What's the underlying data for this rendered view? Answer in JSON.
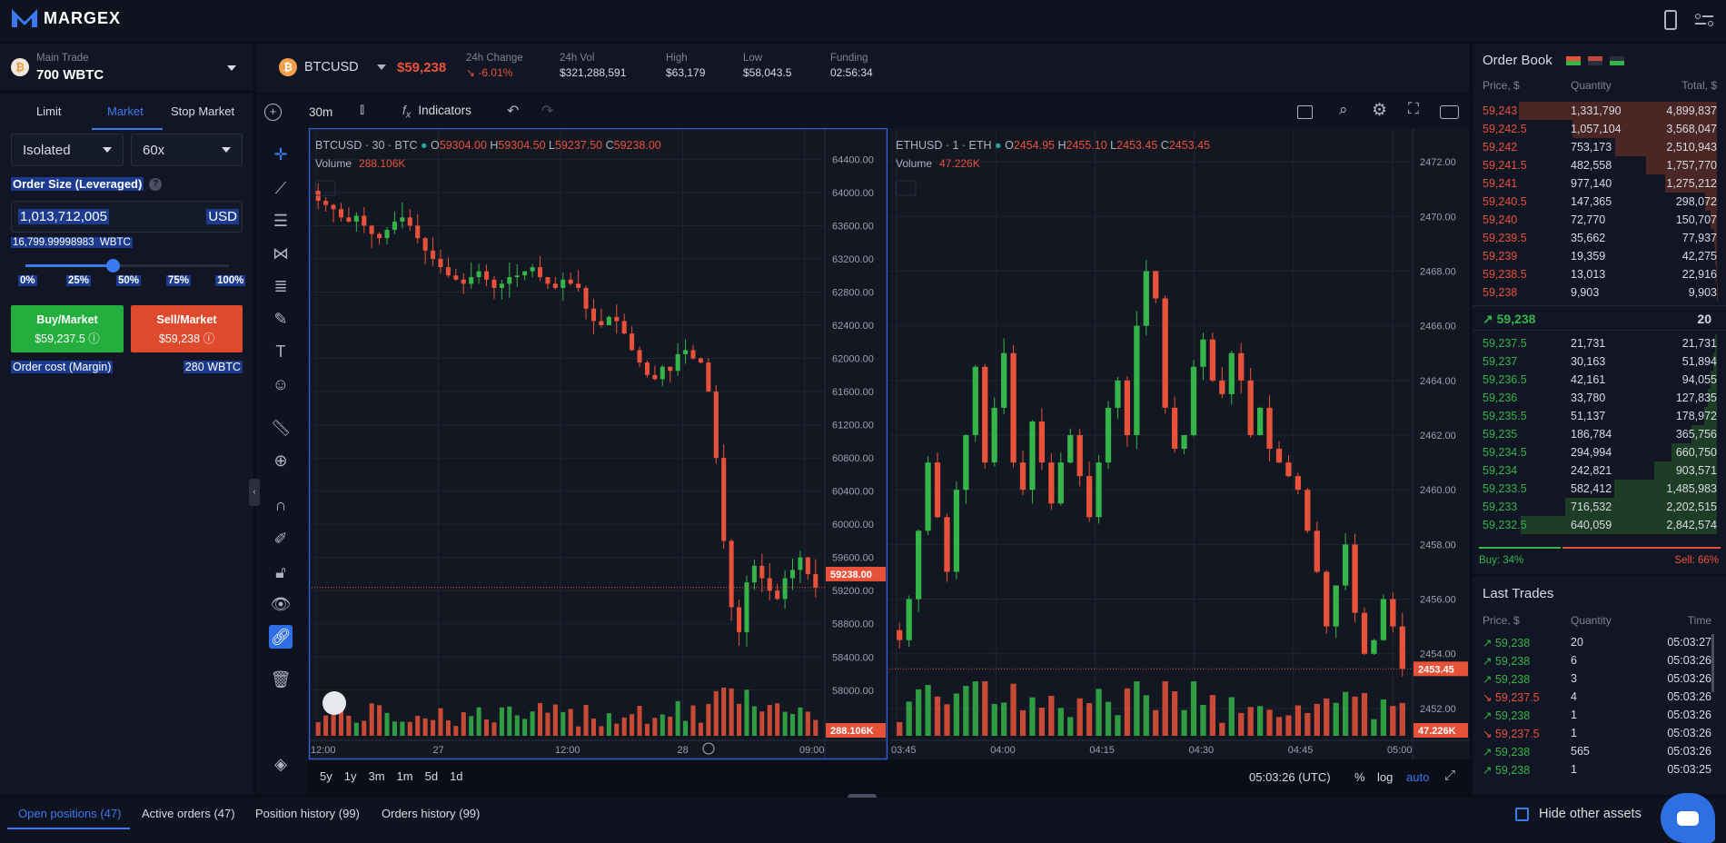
{
  "brand": {
    "name": "MARGEX"
  },
  "account": {
    "label": "Main Trade",
    "balance": "700 WBTC"
  },
  "order_form": {
    "tabs": [
      "Limit",
      "Market",
      "Stop Market"
    ],
    "active_tab": "Market",
    "margin_mode": "Isolated",
    "leverage": "60x",
    "order_size_label": "Order Size (Leveraged)",
    "order_size_value": "1,013,712,005",
    "order_size_currency": "USD",
    "converted": "16,799.99998983  WBTC",
    "slider_marks": [
      "0%",
      "25%",
      "50%",
      "75%",
      "100%"
    ],
    "slider_percent": 43,
    "buy": {
      "label": "Buy/Market",
      "price": "$59,237.5"
    },
    "sell": {
      "label": "Sell/Market",
      "price": "$59,238"
    },
    "cost_label": "Order cost (Margin)",
    "cost_value": "280 WBTC"
  },
  "ticker": {
    "symbol": "BTCUSD",
    "price": "$59,238",
    "stats": [
      {
        "label": "24h Change",
        "value": "↘ -6.01%"
      },
      {
        "label": "24h Vol",
        "value": "$321,288,591"
      },
      {
        "label": "High",
        "value": "$63,179"
      },
      {
        "label": "Low",
        "value": "$58,043.5"
      },
      {
        "label": "Funding",
        "value": "02:56:34"
      }
    ]
  },
  "chart_toolbar": {
    "interval": "30m",
    "indicators": "Indicators"
  },
  "chart_btc": {
    "title": "BTCUSD · 30 · BTC",
    "o": "59304.00",
    "h": "59304.50",
    "l": "59237.50",
    "c": "59238.00",
    "volume_label": "Volume",
    "volume": "288.106K",
    "price_ticks": [
      "64400.00",
      "64000.00",
      "63600.00",
      "63200.00",
      "62800.00",
      "62400.00",
      "62000.00",
      "61600.00",
      "61200.00",
      "60800.00",
      "60400.00",
      "60000.00",
      "59600.00",
      "59200.00",
      "58800.00",
      "58400.00",
      "58000.00"
    ],
    "last_price": "59238.00",
    "last_volume": "288.106K",
    "time_ticks": [
      "12:00",
      "27",
      "12:00",
      "28",
      "09:00"
    ],
    "ylim": [
      57450,
      64700
    ],
    "closes": [
      63900,
      63850,
      63800,
      63700,
      63650,
      63720,
      63600,
      63500,
      63450,
      63550,
      63650,
      63700,
      63600,
      63450,
      63300,
      63200,
      63100,
      63000,
      62950,
      62900,
      62980,
      63050,
      62950,
      62850,
      62900,
      62980,
      63000,
      63050,
      63100,
      62980,
      62900,
      62850,
      62950,
      62900,
      62850,
      62600,
      62450,
      62400,
      62500,
      62450,
      62300,
      62100,
      61950,
      61800,
      61750,
      61900,
      61850,
      62050,
      62100,
      62000,
      61950,
      61600,
      60800,
      59800,
      59000,
      58700,
      59300,
      59500,
      59350,
      59200,
      59100,
      59350,
      59450,
      59600,
      59400,
      59238
    ]
  },
  "chart_eth": {
    "title": "ETHUSD · 1 · ETH",
    "o": "2454.95",
    "h": "2455.10",
    "l": "2453.45",
    "c": "2453.45",
    "volume_label": "Volume",
    "volume": "47.226K",
    "price_ticks": [
      "2472.00",
      "2470.00",
      "2468.00",
      "2466.00",
      "2464.00",
      "2462.00",
      "2460.00",
      "2458.00",
      "2456.00",
      "2454.00",
      "2452.00"
    ],
    "last_price": "2453.45",
    "last_volume": "47.226K",
    "time_ticks": [
      "03:45",
      "04:00",
      "04:15",
      "04:30",
      "04:45",
      "05:00"
    ],
    "ylim": [
      2451.0,
      2473.0
    ],
    "closes": [
      2454.5,
      2456,
      2458.5,
      2461,
      2459,
      2457,
      2460,
      2462,
      2464.5,
      2461,
      2463,
      2465,
      2461,
      2460,
      2462.5,
      2461,
      2459.5,
      2461,
      2462,
      2460.5,
      2459,
      2461,
      2463,
      2464,
      2462,
      2466,
      2468,
      2467,
      2463,
      2461.5,
      2462,
      2464.5,
      2465.5,
      2464,
      2463.5,
      2465,
      2464,
      2462,
      2463,
      2461.5,
      2461,
      2460.5,
      2460,
      2458.5,
      2457,
      2455,
      2456.5,
      2458,
      2455.5,
      2454,
      2454.5,
      2456,
      2455,
      2453.45
    ]
  },
  "range_buttons": [
    "5y",
    "1y",
    "3m",
    "1m",
    "5d",
    "1d"
  ],
  "chart_footer": {
    "clock": "05:03:26 (UTC)",
    "percent": "%",
    "log": "log",
    "auto": "auto"
  },
  "order_book": {
    "title": "Order Book",
    "headers": [
      "Price, $",
      "Quantity",
      "Total, $"
    ],
    "asks": [
      [
        "59,243",
        "1,331,790",
        "4,899,837"
      ],
      [
        "59,242.5",
        "1,057,104",
        "3,568,047"
      ],
      [
        "59,242",
        "753,173",
        "2,510,943"
      ],
      [
        "59,241.5",
        "482,558",
        "1,757,770"
      ],
      [
        "59,241",
        "977,140",
        "1,275,212"
      ],
      [
        "59,240.5",
        "147,365",
        "298,072"
      ],
      [
        "59,240",
        "72,770",
        "150,707"
      ],
      [
        "59,239.5",
        "35,662",
        "77,937"
      ],
      [
        "59,239",
        "19,359",
        "42,275"
      ],
      [
        "59,238.5",
        "13,013",
        "22,916"
      ],
      [
        "59,238",
        "9,903",
        "9,903"
      ]
    ],
    "mid": {
      "price": "↗ 59,238",
      "qty": "20"
    },
    "bids": [
      [
        "59,237.5",
        "21,731",
        "21,731"
      ],
      [
        "59,237",
        "30,163",
        "51,894"
      ],
      [
        "59,236.5",
        "42,161",
        "94,055"
      ],
      [
        "59,236",
        "33,780",
        "127,835"
      ],
      [
        "59,235.5",
        "51,137",
        "178,972"
      ],
      [
        "59,235",
        "186,784",
        "365,756"
      ],
      [
        "59,234.5",
        "294,994",
        "660,750"
      ],
      [
        "59,234",
        "242,821",
        "903,571"
      ],
      [
        "59,233.5",
        "582,412",
        "1,485,983"
      ],
      [
        "59,233",
        "716,532",
        "2,202,515"
      ],
      [
        "59,232.5",
        "640,059",
        "2,842,574"
      ]
    ],
    "buy_pct": "Buy: 34%",
    "sell_pct": "Sell: 66%",
    "buy_fraction": 0.34
  },
  "last_trades": {
    "title": "Last Trades",
    "headers": [
      "Price, $",
      "Quantity",
      "Time"
    ],
    "rows": [
      [
        "up",
        "59,238",
        "20",
        "05:03:27"
      ],
      [
        "up",
        "59,238",
        "6",
        "05:03:26"
      ],
      [
        "up",
        "59,238",
        "3",
        "05:03:26"
      ],
      [
        "down",
        "59,237.5",
        "4",
        "05:03:26"
      ],
      [
        "up",
        "59,238",
        "1",
        "05:03:26"
      ],
      [
        "down",
        "59,237.5",
        "1",
        "05:03:26"
      ],
      [
        "up",
        "59,238",
        "565",
        "05:03:26"
      ],
      [
        "up",
        "59,238",
        "1",
        "05:03:25"
      ]
    ]
  },
  "bottom_tabs": [
    "Open positions (47)",
    "Active orders (47)",
    "Position history (99)",
    "Orders history (99)"
  ],
  "hide_other_assets": "Hide other assets",
  "colors": {
    "up": "#35b44a",
    "down": "#e8523a",
    "accent": "#2f6fe4",
    "bg": "#0b0e19",
    "panel": "#121624"
  }
}
